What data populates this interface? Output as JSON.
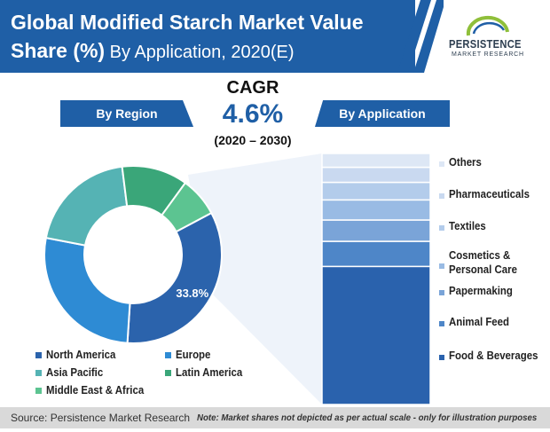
{
  "header": {
    "title_line1": "Global Modified Starch Market Value",
    "title_line2_bold": "Share (%)",
    "title_line2_rest": " By Application, 2020(E)"
  },
  "logo": {
    "name": "PERSISTENCE",
    "tagline": "MARKET RESEARCH"
  },
  "cagr": {
    "label": "CAGR",
    "value": "4.6%",
    "period": "(2020 – 2030)"
  },
  "ribbons": {
    "region": "By Region",
    "application": "By Application"
  },
  "chart_data": [
    {
      "type": "pie",
      "variant": "donut",
      "labels": [
        "North America",
        "Europe",
        "Asia Pacific",
        "Latin America",
        "Middle East & Africa"
      ],
      "values": [
        33.8,
        27,
        20,
        12,
        7.2
      ],
      "colors": [
        "#2b63ac",
        "#2e8bd4",
        "#55b3b4",
        "#3aa679",
        "#5cc491"
      ],
      "data_labels": [
        "33.8%",
        "",
        "",
        "",
        ""
      ],
      "legend": "bottom"
    },
    {
      "type": "bar",
      "variant": "stacked-100",
      "categories": [
        "Food & Beverages",
        "Animal Feed",
        "Papermaking",
        "Cosmetics & Personal Care",
        "Textiles",
        "Pharmaceuticals",
        "Others"
      ],
      "values": [
        55,
        10,
        8.5,
        8,
        7,
        6,
        5.5
      ],
      "colors": [
        "#2a62ad",
        "#4e86c8",
        "#7aa4d8",
        "#99bbe4",
        "#b3cceb",
        "#c9d9f0",
        "#dde7f5"
      ],
      "legend": "right"
    }
  ],
  "footer": {
    "source": "Source: Persistence Market Research",
    "note": "Note: Market shares not depicted as per actual scale - only for illustration purposes"
  }
}
